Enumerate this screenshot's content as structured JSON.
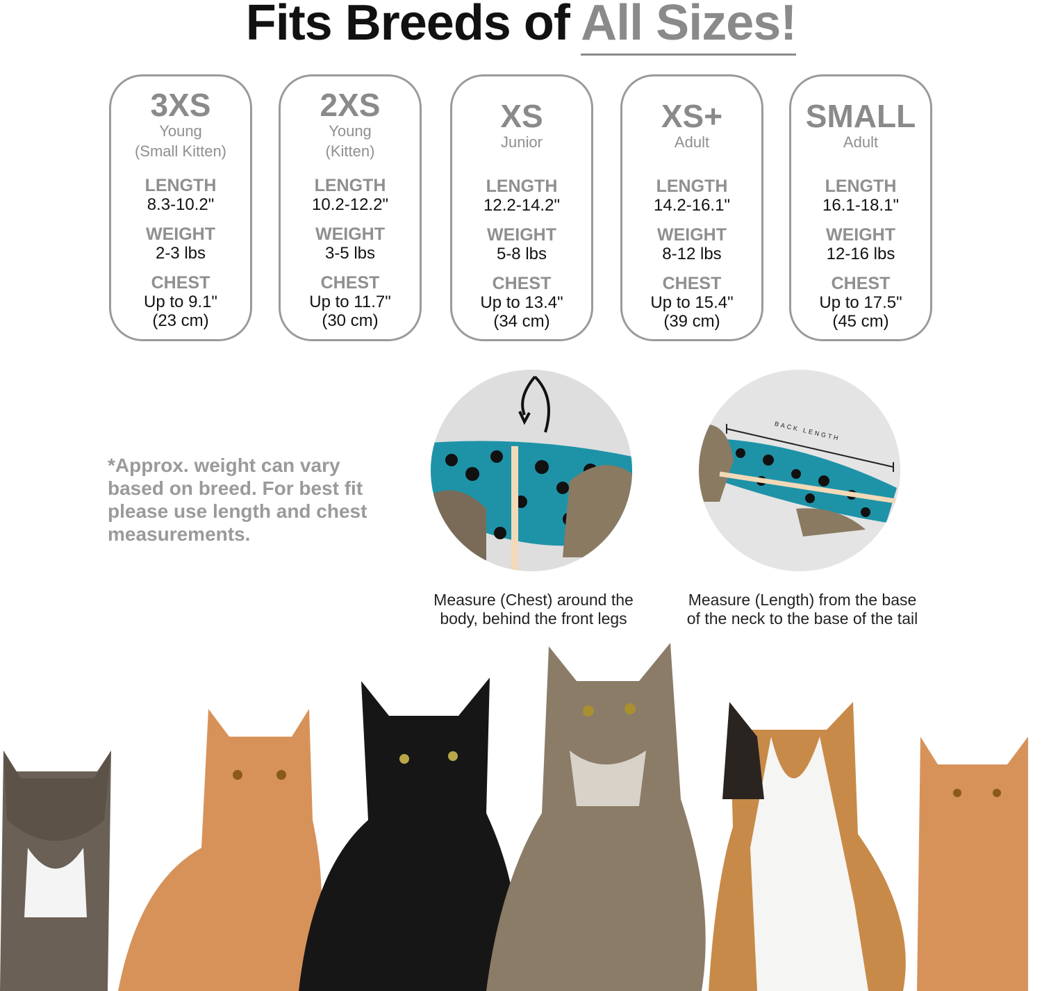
{
  "title": {
    "main": "Fits Breeds of",
    "highlight": "All Sizes!"
  },
  "labels": {
    "length": "LENGTH",
    "weight": "WEIGHT",
    "chest": "CHEST"
  },
  "sizes": [
    {
      "size": "3XS",
      "sub1": "Young",
      "sub2": "(Small Kitten)",
      "length": "8.3-10.2\"",
      "weight": "2-3 lbs",
      "chest": "Up to 9.1\"",
      "chest_cm": "(23 cm)"
    },
    {
      "size": "2XS",
      "sub1": "Young",
      "sub2": "(Kitten)",
      "length": "10.2-12.2\"",
      "weight": "3-5 lbs",
      "chest": "Up to 11.7\"",
      "chest_cm": "(30 cm)"
    },
    {
      "size": "XS",
      "sub1": "Junior",
      "sub2": "",
      "length": "12.2-14.2\"",
      "weight": "5-8 lbs",
      "chest": "Up to 13.4\"",
      "chest_cm": "(34 cm)"
    },
    {
      "size": "XS+",
      "sub1": "Adult",
      "sub2": "",
      "length": "14.2-16.1\"",
      "weight": "8-12 lbs",
      "chest": "Up to 15.4\"",
      "chest_cm": "(39 cm)"
    },
    {
      "size": "SMALL",
      "sub1": "Adult",
      "sub2": "",
      "length": "16.1-18.1\"",
      "weight": "12-16 lbs",
      "chest": "Up to 17.5\"",
      "chest_cm": "(45 cm)"
    }
  ],
  "note": "*Approx. weight can vary based on breed. For best fit please use length and chest measurements.",
  "measure": {
    "chest_caption": [
      "Measure (Chest) around the",
      "body, behind the front legs"
    ],
    "length_caption": [
      "Measure (Length) from the base",
      "of the neck to the base of the tail"
    ],
    "back_length_label": "BACK LENGTH"
  },
  "colors": {
    "gray": "#8a8a8a",
    "teal": "#1e93a8",
    "border": "#9a9a9a"
  }
}
